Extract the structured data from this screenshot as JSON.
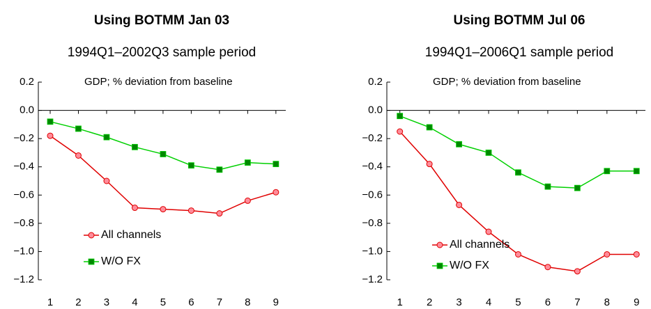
{
  "chart_data": [
    {
      "type": "line",
      "title": "Using BOTMM Jan 03",
      "subtitle": "1994Q1–2002Q3 sample period",
      "annotation": "GDP; % deviation from baseline",
      "x": [
        1,
        2,
        3,
        4,
        5,
        6,
        7,
        8,
        9
      ],
      "series": [
        {
          "name": "All channels",
          "color": "#e00000",
          "marker": "circle",
          "marker_color": "#ff8c9a",
          "values": [
            -0.18,
            -0.32,
            -0.5,
            -0.69,
            -0.7,
            -0.71,
            -0.73,
            -0.64,
            -0.58
          ]
        },
        {
          "name": "W/O FX",
          "color": "#00d000",
          "marker": "square",
          "marker_color": "#008800",
          "values": [
            -0.08,
            -0.13,
            -0.19,
            -0.26,
            -0.31,
            -0.39,
            -0.42,
            -0.37,
            -0.38
          ]
        }
      ],
      "xlim": [
        0.58,
        9.35
      ],
      "xticks": [
        1,
        2,
        3,
        4,
        5,
        6,
        7,
        8,
        9
      ],
      "ylim": [
        -1.2,
        0.2
      ],
      "yticks": [
        0.2,
        {
          "value": 0,
          "label": "0.0"
        },
        {
          "value": -0.2,
          "label": "−0.2"
        },
        {
          "value": -0.4,
          "label": "−0.4"
        },
        {
          "value": -0.6,
          "label": "−0.6"
        },
        {
          "value": -0.8,
          "label": "−0.8"
        },
        {
          "value": -1.0,
          "label": "−1.0"
        },
        {
          "value": -1.2,
          "label": "−1.2"
        }
      ],
      "legend": "lower-left",
      "grid": false
    },
    {
      "type": "line",
      "title": "Using BOTMM Jul 06",
      "subtitle": "1994Q1–2006Q1 sample period",
      "annotation": "GDP; % deviation from baseline",
      "x": [
        1,
        2,
        3,
        4,
        5,
        6,
        7,
        8,
        9
      ],
      "series": [
        {
          "name": "All channels",
          "color": "#e00000",
          "marker": "circle",
          "marker_color": "#ff8c9a",
          "values": [
            -0.15,
            -0.38,
            -0.67,
            -0.86,
            -1.02,
            -1.11,
            -1.14,
            -1.02,
            -1.02
          ]
        },
        {
          "name": "W/O FX",
          "color": "#00d000",
          "marker": "square",
          "marker_color": "#008800",
          "values": [
            -0.04,
            -0.12,
            -0.24,
            -0.3,
            -0.44,
            -0.54,
            -0.55,
            -0.43,
            -0.43
          ]
        }
      ],
      "xlim": [
        0.56,
        9.3
      ],
      "xticks": [
        1,
        2,
        3,
        4,
        5,
        6,
        7,
        8,
        9
      ],
      "ylim": [
        -1.2,
        0.2
      ],
      "yticks": [
        0.2,
        {
          "value": 0,
          "label": "0.0"
        },
        {
          "value": -0.2,
          "label": "−0.2"
        },
        {
          "value": -0.4,
          "label": "−0.4"
        },
        {
          "value": -0.6,
          "label": "−0.6"
        },
        {
          "value": -0.8,
          "label": "−0.8"
        },
        {
          "value": -1.0,
          "label": "−1.0"
        },
        {
          "value": -1.2,
          "label": "−1.2"
        }
      ],
      "legend": "lower-left",
      "grid": false
    }
  ]
}
